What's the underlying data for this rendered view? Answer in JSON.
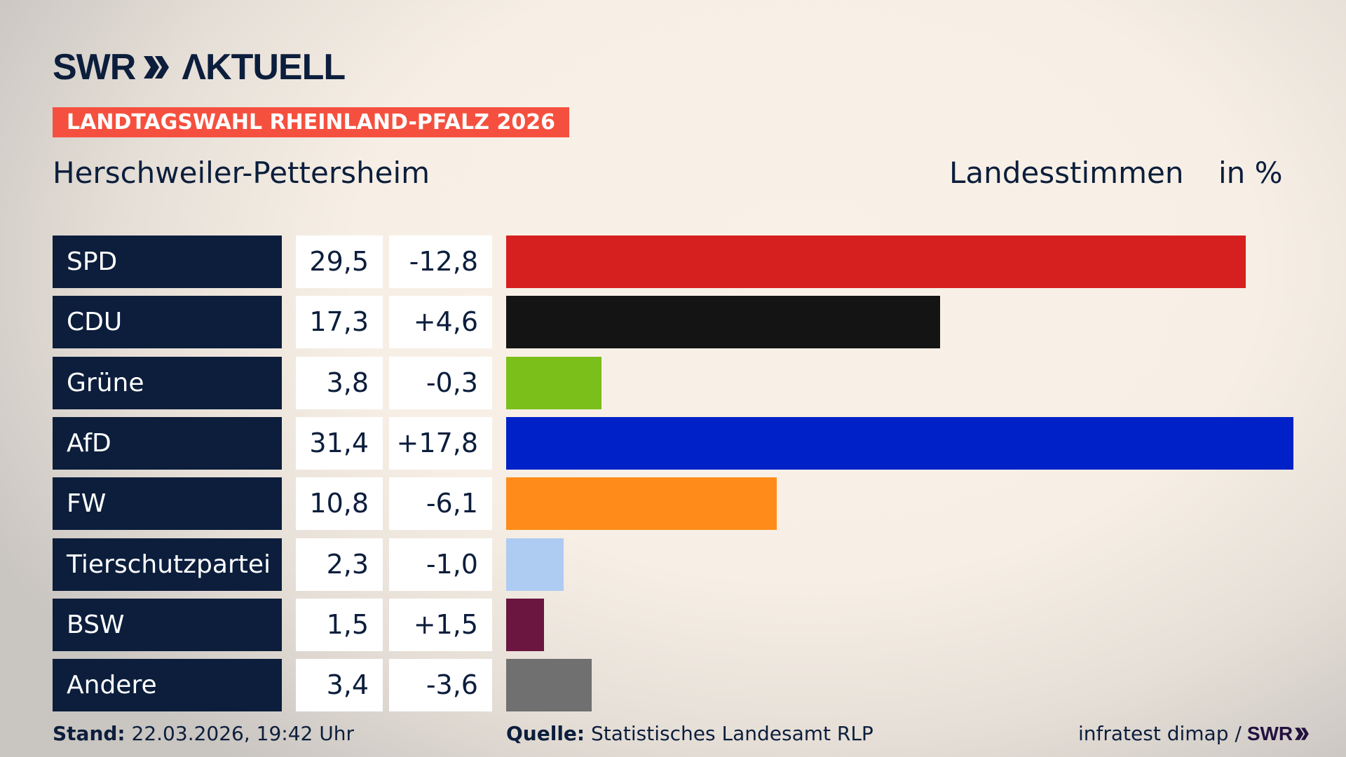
{
  "brand": {
    "logo_text": "SWR AKTUELL"
  },
  "tag": "LANDTAGSWAHL RHEINLAND-PFALZ 2026",
  "location": "Herschweiler-Pettersheim",
  "measure_label": "Landesstimmen",
  "unit_label": "in %",
  "chart_data": {
    "type": "bar",
    "orientation": "horizontal",
    "categories": [
      "SPD",
      "CDU",
      "Grüne",
      "AfD",
      "FW",
      "Tierschutzpartei",
      "BSW",
      "Andere"
    ],
    "values": [
      29.5,
      17.3,
      3.8,
      31.4,
      10.8,
      2.3,
      1.5,
      3.4
    ],
    "value_labels": [
      "29,5",
      "17,3",
      "3,8",
      "31,4",
      "10,8",
      "2,3",
      "1,5",
      "3,4"
    ],
    "change_labels": [
      "-12,8",
      "+4,6",
      "-0,3",
      "+17,8",
      "-6,1",
      "-1,0",
      "+1,5",
      "-3,6"
    ],
    "changes": [
      -12.8,
      4.6,
      -0.3,
      17.8,
      -6.1,
      -1.0,
      1.5,
      -3.6
    ],
    "colors": [
      "#d62020",
      "#141414",
      "#7abf1a",
      "#0021c8",
      "#ff8c1a",
      "#aecbf2",
      "#6a1640",
      "#707070"
    ],
    "xlim": [
      0,
      31.4
    ],
    "grid": false
  },
  "footer": {
    "stand_label": "Stand:",
    "stand_value": "22.03.2026, 19:42 Uhr",
    "source_label": "Quelle:",
    "source_value": "Statistisches Landesamt RLP",
    "credit": "infratest dimap /",
    "credit_logo": "SWR"
  }
}
